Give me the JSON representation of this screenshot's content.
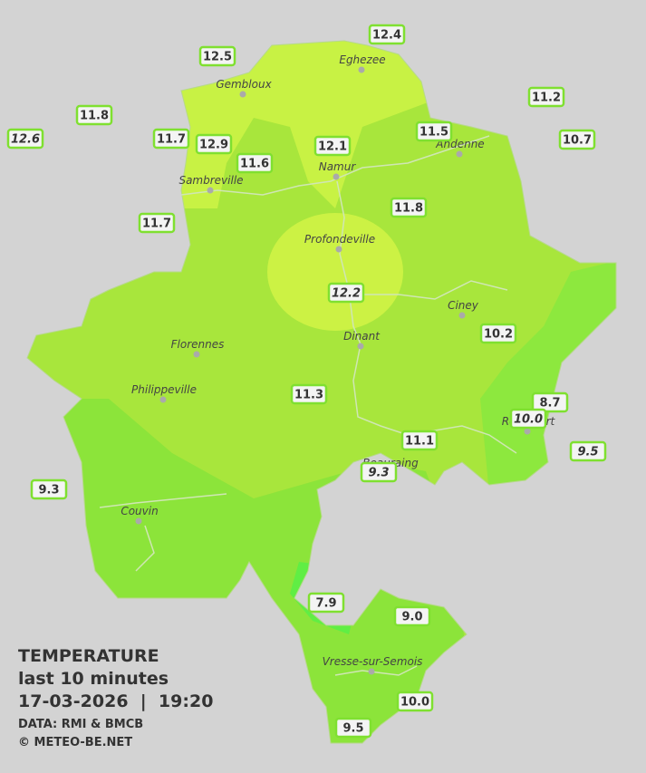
{
  "legend": {
    "title": "TEMPERATURE",
    "subtitle": "last 10 minutes",
    "datetime": "17-03-2026  |  19:20",
    "source": "DATA: RMI & BMCB",
    "copyright": "© METEO-BE.NET"
  },
  "cities": [
    {
      "name": "Eghezee"
    },
    {
      "name": "Gembloux"
    },
    {
      "name": "Andenne"
    },
    {
      "name": "Namur"
    },
    {
      "name": "Sambreville"
    },
    {
      "name": "Profondeville"
    },
    {
      "name": "Ciney"
    },
    {
      "name": "Florennes"
    },
    {
      "name": "Dinant"
    },
    {
      "name": "Philippeville"
    },
    {
      "name": "Rochefort"
    },
    {
      "name": "Beauraing"
    },
    {
      "name": "Couvin"
    },
    {
      "name": "Vresse-sur-Semois"
    }
  ],
  "stations": [
    {
      "value": "12.4",
      "italic": false
    },
    {
      "value": "12.5",
      "italic": false
    },
    {
      "value": "11.8",
      "italic": false
    },
    {
      "value": "12.6",
      "italic": true
    },
    {
      "value": "11.7",
      "italic": false
    },
    {
      "value": "12.9",
      "italic": false
    },
    {
      "value": "11.6",
      "italic": false
    },
    {
      "value": "12.1",
      "italic": false
    },
    {
      "value": "11.5",
      "italic": false
    },
    {
      "value": "11.2",
      "italic": false
    },
    {
      "value": "10.7",
      "italic": false
    },
    {
      "value": "11.7",
      "italic": false
    },
    {
      "value": "11.8",
      "italic": false
    },
    {
      "value": "12.2",
      "italic": true
    },
    {
      "value": "10.2",
      "italic": false
    },
    {
      "value": "11.3",
      "italic": false
    },
    {
      "value": "8.7",
      "italic": false
    },
    {
      "value": "10.0",
      "italic": true
    },
    {
      "value": "9.5",
      "italic": true
    },
    {
      "value": "11.1",
      "italic": false
    },
    {
      "value": "9.3",
      "italic": true
    },
    {
      "value": "9.3",
      "italic": false
    },
    {
      "value": "7.9",
      "italic": false
    },
    {
      "value": "9.0",
      "italic": false
    },
    {
      "value": "10.0",
      "italic": false
    },
    {
      "value": "9.5",
      "italic": false
    }
  ]
}
